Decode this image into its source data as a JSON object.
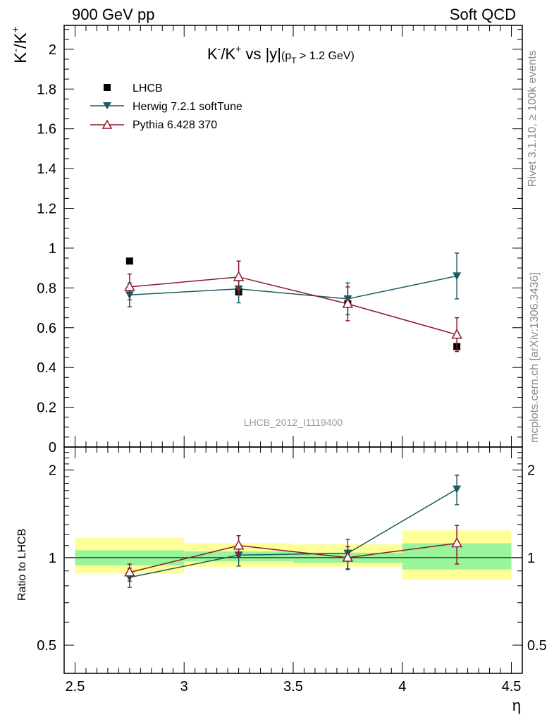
{
  "header": {
    "left_label": "900 GeV pp",
    "right_label": "Soft QCD"
  },
  "side": {
    "rivet_label": "Rivet 3.1.10, ≥ 100k events",
    "mcplots_label": "mcplots.cern.ch [arXiv:1306.3436]"
  },
  "colors": {
    "data": "#000000",
    "herwig": "#1b5b63",
    "pythia": "#8b1a2b",
    "band_inner": "#99f599",
    "band_outer": "#ffff99",
    "watermark": "#999999"
  },
  "chart_data": [
    {
      "type": "scatter",
      "panel": "main",
      "title": "K⁻/K⁺ vs |y|",
      "title_parts": {
        "main": "K",
        "sup1": "-",
        "mid": "/K",
        "sup2": "+",
        "tail": " vs |y|",
        "cut_open": "(p",
        "cut_sub": "T",
        "cut_close": " > 1.2 GeV)"
      },
      "ylabel": "K⁻/K⁺",
      "ylabel_parts": {
        "a": "K",
        "b": "-",
        "c": "/K",
        "d": "+"
      },
      "watermark": "LHCB_2012_I1119400",
      "xlim": [
        2.45,
        4.55
      ],
      "ylim": [
        0,
        2.12
      ],
      "yticks": [
        0,
        0.2,
        0.4,
        0.6,
        0.8,
        1,
        1.2,
        1.4,
        1.6,
        1.8,
        2
      ],
      "ytick_labels": [
        "0",
        "0.2",
        "0.4",
        "0.6",
        "0.8",
        "1",
        "1.2",
        "1.4",
        "1.6",
        "1.8",
        "2"
      ],
      "series": [
        {
          "name": "LHCB",
          "marker": "square",
          "x": [
            2.75,
            3.25,
            3.75,
            4.25
          ],
          "y": [
            0.935,
            0.78,
            0.72,
            0.505
          ],
          "yerr": [
            0.01,
            0.01,
            0.01,
            0.015
          ]
        },
        {
          "name": "Herwig 7.2.1 softTune",
          "marker": "triangle-down",
          "x": [
            2.75,
            3.25,
            3.75,
            4.25
          ],
          "y": [
            0.765,
            0.795,
            0.745,
            0.86
          ],
          "yerr": [
            0.06,
            0.07,
            0.08,
            0.115
          ]
        },
        {
          "name": "Pythia 6.428 370",
          "marker": "triangle-up-open",
          "x": [
            2.75,
            3.25,
            3.75,
            4.25
          ],
          "y": [
            0.805,
            0.855,
            0.72,
            0.565
          ],
          "yerr": [
            0.065,
            0.08,
            0.085,
            0.085
          ]
        }
      ]
    },
    {
      "type": "scatter",
      "panel": "ratio",
      "ylabel": "Ratio to LHCB",
      "xlabel": "η",
      "xlim": [
        2.45,
        4.55
      ],
      "ylim_log": [
        0.4,
        2.4
      ],
      "yticks": [
        0.5,
        1,
        2
      ],
      "ytick_labels": [
        "0.5",
        "1",
        "2"
      ],
      "xticks": [
        2.5,
        3,
        3.5,
        4,
        4.5
      ],
      "xtick_labels": [
        "2.5",
        "3",
        "3.5",
        "4",
        "4.5"
      ],
      "bands": [
        {
          "x0": 2.5,
          "x1": 3.0,
          "inner": [
            0.94,
            1.06
          ],
          "outer": [
            0.88,
            1.17
          ]
        },
        {
          "x0": 3.0,
          "x1": 3.5,
          "inner": [
            0.97,
            1.05
          ],
          "outer": [
            0.93,
            1.12
          ]
        },
        {
          "x0": 3.5,
          "x1": 4.0,
          "inner": [
            0.96,
            1.04
          ],
          "outer": [
            0.93,
            1.11
          ]
        },
        {
          "x0": 4.0,
          "x1": 4.5,
          "inner": [
            0.91,
            1.12
          ],
          "outer": [
            0.84,
            1.24
          ]
        }
      ],
      "series": [
        {
          "name": "Herwig 7.2.1 softTune",
          "marker": "triangle-down",
          "x": [
            2.75,
            3.25,
            3.75,
            4.25
          ],
          "y": [
            0.855,
            1.02,
            1.035,
            1.72
          ],
          "yerr": [
            0.065,
            0.085,
            0.12,
            0.2
          ]
        },
        {
          "name": "Pythia 6.428 370",
          "marker": "triangle-up-open",
          "x": [
            2.75,
            3.25,
            3.75,
            4.25
          ],
          "y": [
            0.89,
            1.1,
            1.0,
            1.12
          ],
          "yerr": [
            0.06,
            0.09,
            0.09,
            0.17
          ]
        }
      ]
    }
  ]
}
